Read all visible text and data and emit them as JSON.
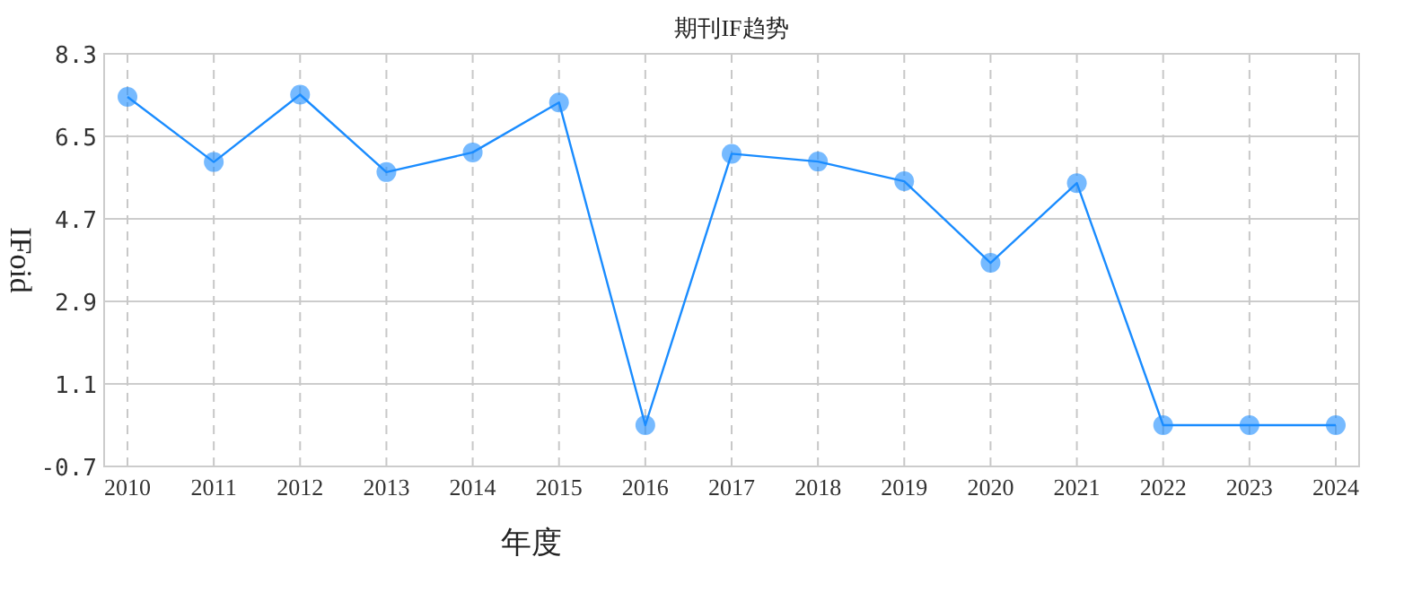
{
  "chart_data": {
    "type": "line",
    "title": "期刊IF趋势",
    "xlabel": "年度",
    "ylabel": "IFoid",
    "categories": [
      "2010",
      "2011",
      "2012",
      "2013",
      "2014",
      "2015",
      "2016",
      "2017",
      "2018",
      "2019",
      "2020",
      "2021",
      "2022",
      "2023",
      "2024"
    ],
    "series": [
      {
        "color": "#1a8cff",
        "values": [
          7.36,
          5.94,
          7.41,
          5.72,
          6.15,
          7.24,
          0.2,
          6.12,
          5.95,
          5.52,
          3.74,
          5.48,
          0.2,
          0.2,
          0.2
        ]
      }
    ],
    "ylim": [
      -0.7,
      8.3
    ],
    "yticks": [
      -0.7,
      1.1,
      2.9,
      4.7,
      6.5,
      8.3
    ],
    "grid": true,
    "marker": "circle",
    "line_style": "solid"
  }
}
